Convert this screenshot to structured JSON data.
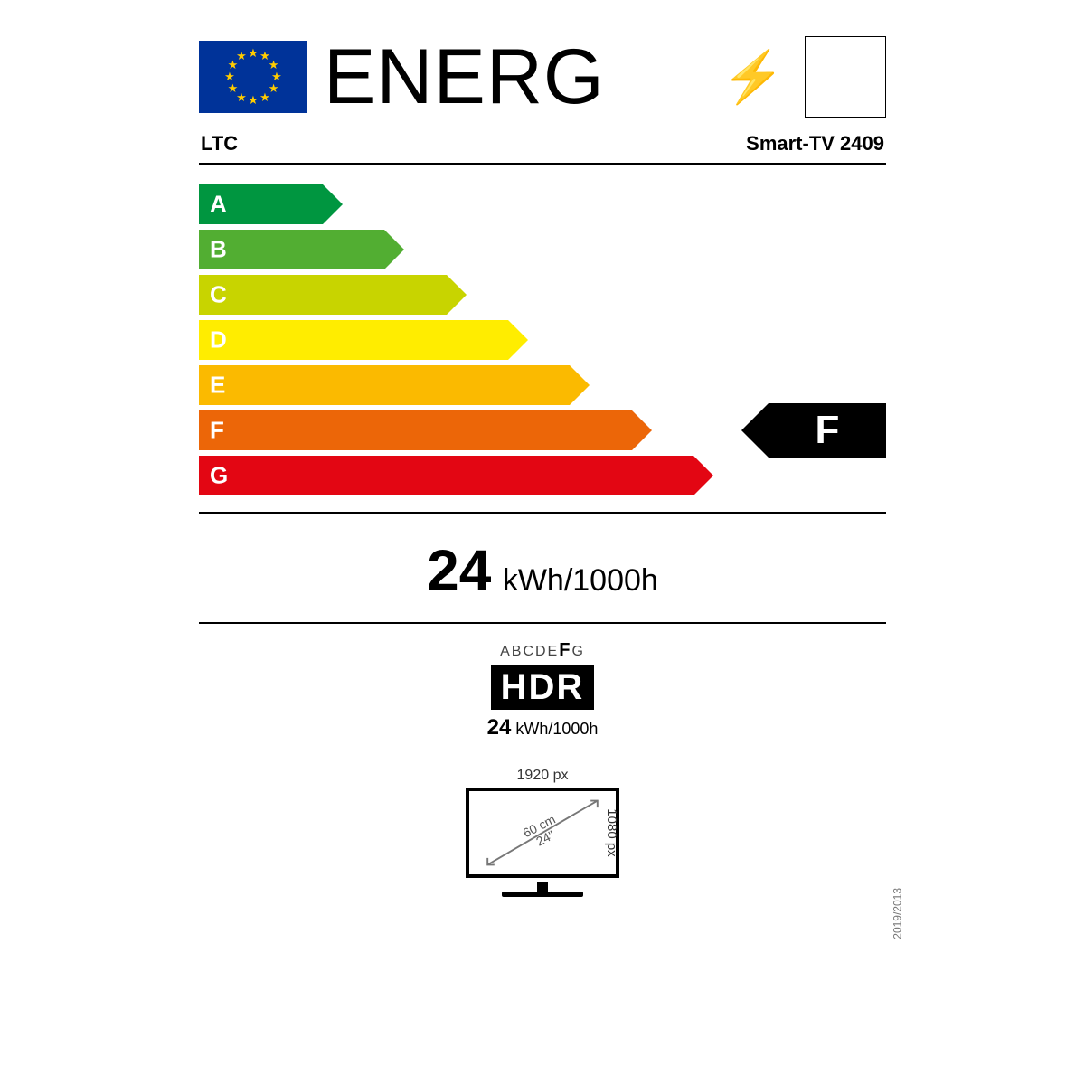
{
  "header": {
    "title": "ENERG",
    "eu_flag_bg": "#003399",
    "eu_star_color": "#ffcc00"
  },
  "supplier": {
    "brand": "LTC",
    "model": "Smart-TV 2409"
  },
  "scale": {
    "bars": [
      {
        "letter": "A",
        "width_pct": 18,
        "color": "#009640"
      },
      {
        "letter": "B",
        "width_pct": 27,
        "color": "#52ae32"
      },
      {
        "letter": "C",
        "width_pct": 36,
        "color": "#c8d400"
      },
      {
        "letter": "D",
        "width_pct": 45,
        "color": "#ffed00"
      },
      {
        "letter": "E",
        "width_pct": 54,
        "color": "#fbba00"
      },
      {
        "letter": "F",
        "width_pct": 63,
        "color": "#ec6608"
      },
      {
        "letter": "G",
        "width_pct": 72,
        "color": "#e30613"
      }
    ],
    "rating": "F",
    "rating_index": 5
  },
  "consumption": {
    "value": "24",
    "unit": "kWh/1000h"
  },
  "hdr": {
    "mini_scale_pre": "ABCDE",
    "mini_scale_sel": "F",
    "mini_scale_post": "G",
    "box_text": "HDR",
    "value": "24",
    "unit": "kWh/1000h"
  },
  "screen": {
    "px_width": "1920 px",
    "px_height": "1080 px",
    "diag_cm": "60 cm",
    "diag_in": "24\""
  },
  "regulation": "2019/2013"
}
